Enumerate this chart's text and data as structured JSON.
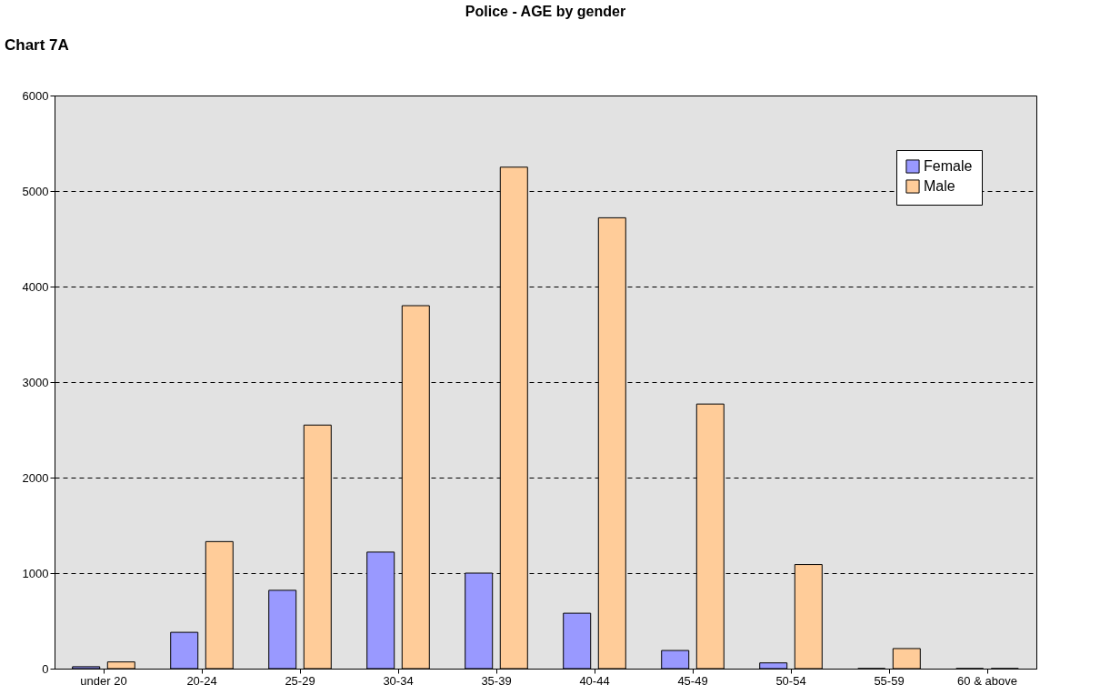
{
  "chart_data": {
    "type": "bar",
    "title": "Police - AGE by gender",
    "annotations": [
      "Chart 7A"
    ],
    "categories": [
      "under 20",
      "20-24",
      "25-29",
      "30-34",
      "35-39",
      "40-44",
      "45-49",
      "50-54",
      "55-59",
      "60 & above"
    ],
    "series": [
      {
        "name": "Female",
        "color": "#9999ff",
        "values": [
          20,
          380,
          820,
          1220,
          1000,
          580,
          190,
          60,
          0,
          0
        ]
      },
      {
        "name": "Male",
        "color": "#ffcc99",
        "values": [
          70,
          1330,
          2550,
          3800,
          5250,
          4720,
          2770,
          1090,
          210,
          0
        ]
      }
    ],
    "ylim": [
      0,
      6000
    ],
    "yticks": [
      0,
      1000,
      2000,
      3000,
      4000,
      5000,
      6000
    ],
    "grid": "y",
    "legend": "top right"
  }
}
